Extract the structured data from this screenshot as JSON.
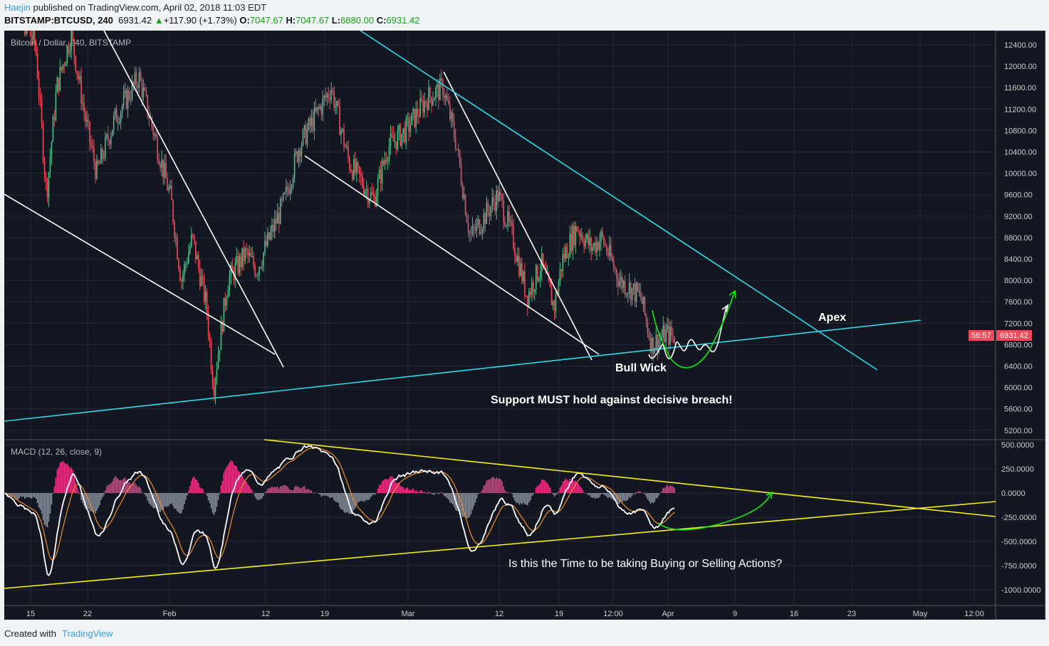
{
  "header": {
    "author": "Haejin",
    "published": "published on TradingView.com, April 02, 2018 11:03 EDT",
    "symbol": "BITSTAMP:BTCUSD, 240",
    "price": "6931.42",
    "change": "+117.90 (+1.73%)",
    "o_label": "O:",
    "o": "7047.67",
    "h_label": "H:",
    "h": "7047.67",
    "l_label": "L:",
    "l": "6880.00",
    "c_label": "C:",
    "c": "6931.42"
  },
  "footer": {
    "created": "Created with",
    "brand": "TradingView"
  },
  "colors": {
    "bg": "#131722",
    "up": "#53b987",
    "down": "#eb4d5c",
    "cyan": "#2fd9e6",
    "yellow": "#f4f018",
    "green": "#18e818"
  },
  "chart_data": {
    "type": "candlestick",
    "title": "Bitcoin / Dollar, 240, BITSTAMP",
    "price_ticks": [
      "12400.00",
      "12000.00",
      "11600.00",
      "11200.00",
      "10800.00",
      "10400.00",
      "10000.00",
      "9600.00",
      "9200.00",
      "8800.00",
      "8400.00",
      "8000.00",
      "7600.00",
      "7200.00",
      "6800.00",
      "6400.00",
      "6000.00",
      "5600.00",
      "5200.00"
    ],
    "ylim": [
      5200,
      12400
    ],
    "last_price": "6931.42",
    "countdown": "56:57",
    "x_ticks": [
      "15",
      "22",
      "Feb",
      "12",
      "19",
      "Mar",
      "12",
      "19",
      "12:00",
      "Apr",
      "9",
      "16",
      "23",
      "May",
      "12:00"
    ],
    "price_path_day_offset_from_jan12": [
      [
        0,
        13500
      ],
      [
        3.6,
        12400
      ],
      [
        4.9,
        9600
      ],
      [
        6.1,
        11600
      ],
      [
        7.8,
        12600
      ],
      [
        9.5,
        11000
      ],
      [
        10.8,
        10000
      ],
      [
        12.9,
        11000
      ],
      [
        15.8,
        11800
      ],
      [
        17.5,
        10800
      ],
      [
        19.6,
        9500
      ],
      [
        20.8,
        8000
      ],
      [
        22.1,
        8800
      ],
      [
        23.8,
        7500
      ],
      [
        24.6,
        6000
      ],
      [
        26.3,
        8000
      ],
      [
        28.4,
        8500
      ],
      [
        29.7,
        8200
      ],
      [
        33,
        9500
      ],
      [
        34.7,
        10500
      ],
      [
        36.4,
        11000
      ],
      [
        38.5,
        11600
      ],
      [
        40.6,
        10200
      ],
      [
        43.5,
        9500
      ],
      [
        45.2,
        10500
      ],
      [
        47.3,
        10800
      ],
      [
        49.8,
        11400
      ],
      [
        51.7,
        11600
      ],
      [
        53.2,
        10600
      ],
      [
        54.9,
        8800
      ],
      [
        56.6,
        9200
      ],
      [
        58.2,
        9600
      ],
      [
        59.9,
        8800
      ],
      [
        61.6,
        7700
      ],
      [
        63.3,
        8300
      ],
      [
        64.8,
        7500
      ],
      [
        65.8,
        8400
      ],
      [
        67.5,
        9000
      ],
      [
        69.2,
        8600
      ],
      [
        70.4,
        8800
      ],
      [
        72.5,
        8000
      ],
      [
        75,
        7700
      ],
      [
        76.3,
        6800
      ],
      [
        78,
        7000
      ],
      [
        79.1,
        6930
      ]
    ],
    "macd": {
      "label": "MACD (12, 26, close, 9)",
      "ticks": [
        "500.0000",
        "250.0000",
        "0.0000",
        "-250.0000",
        "-500.0000",
        "-750.0000",
        "-1000.0000"
      ],
      "ylim": [
        -1000,
        500
      ]
    },
    "annotations": {
      "apex": "Apex",
      "bull_wick": "Bull Wick",
      "support": "Support MUST hold against decisive breach!",
      "question": "Is this the Time to be taking Buying or Selling Actions?"
    }
  }
}
